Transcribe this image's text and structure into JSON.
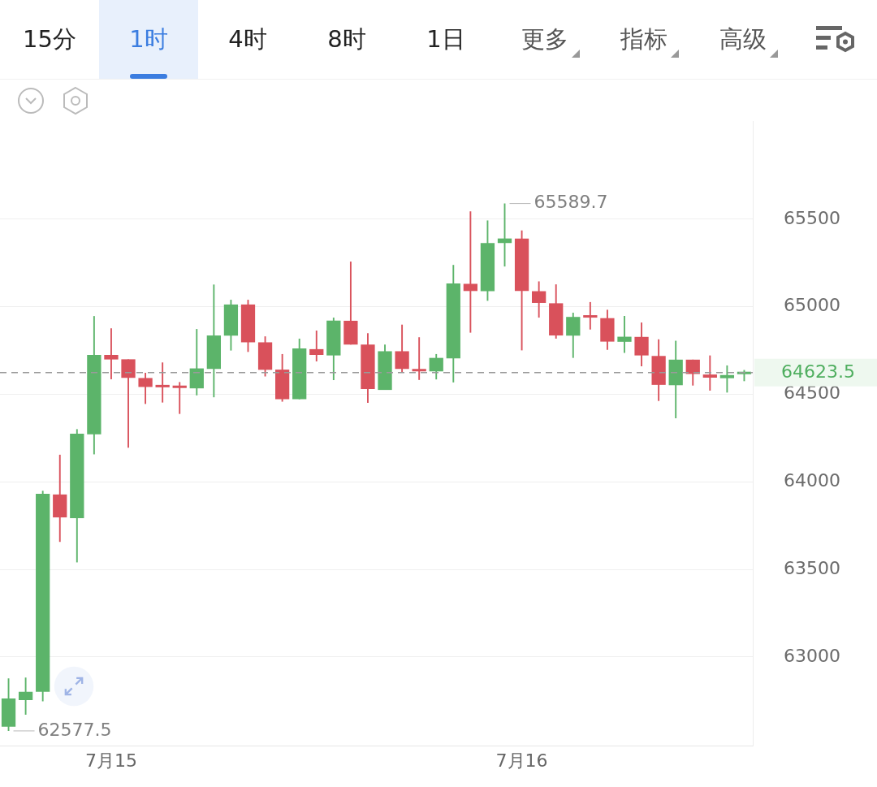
{
  "chart_data": {
    "type": "candlestick",
    "categories": [
      null,
      null,
      null,
      null,
      null,
      null,
      "7月15",
      null,
      null,
      null,
      null,
      null,
      null,
      null,
      null,
      null,
      null,
      null,
      null,
      null,
      null,
      null,
      null,
      null,
      null,
      null,
      null,
      null,
      null,
      null,
      "7月16",
      null,
      null,
      null,
      null,
      null,
      null,
      null,
      null,
      null,
      null,
      null,
      null,
      null
    ],
    "ohlc": [
      [
        62602,
        62877,
        62577.5,
        62763
      ],
      [
        62754,
        62882,
        62670,
        62801
      ],
      [
        62801,
        63949,
        62746,
        63932
      ],
      [
        63928,
        64155,
        63657,
        63797
      ],
      [
        63793,
        64301,
        63540,
        64275
      ],
      [
        64271,
        64947,
        64157,
        64725
      ],
      [
        64725,
        64877,
        64586,
        64699
      ],
      [
        64700,
        64700,
        64195,
        64594
      ],
      [
        64593,
        64623,
        64445,
        64542
      ],
      [
        64545,
        64682,
        64453,
        64540
      ],
      [
        64540,
        64570,
        64388,
        64536
      ],
      [
        64534,
        64873,
        64494,
        64648
      ],
      [
        64645,
        65127,
        64483,
        64836
      ],
      [
        64835,
        65040,
        64750,
        65013
      ],
      [
        65013,
        65040,
        64742,
        64797
      ],
      [
        64797,
        64831,
        64602,
        64640
      ],
      [
        64641,
        64730,
        64458,
        64472
      ],
      [
        64472,
        64818,
        64472,
        64762
      ],
      [
        64758,
        64864,
        64688,
        64725
      ],
      [
        64722,
        64938,
        64581,
        64921
      ],
      [
        64920,
        65258,
        64784,
        64784
      ],
      [
        64784,
        64849,
        64451,
        64530
      ],
      [
        64525,
        64784,
        64525,
        64746
      ],
      [
        64746,
        64898,
        64624,
        64645
      ],
      [
        64643,
        64826,
        64582,
        64631
      ],
      [
        64631,
        64730,
        64585,
        64708
      ],
      [
        64705,
        65239,
        64568,
        65133
      ],
      [
        65131,
        65545,
        64852,
        65090
      ],
      [
        65089,
        65493,
        65034,
        65364
      ],
      [
        65364,
        65589.7,
        65230,
        65390
      ],
      [
        65390,
        65436,
        64751,
        65090
      ],
      [
        65089,
        65145,
        64938,
        65022
      ],
      [
        65020,
        65128,
        64818,
        64836
      ],
      [
        64835,
        64966,
        64708,
        64942
      ],
      [
        64942,
        65027,
        64870,
        64938
      ],
      [
        64935,
        64983,
        64754,
        64801
      ],
      [
        64800,
        64948,
        64737,
        64829
      ],
      [
        64828,
        64910,
        64660,
        64722
      ],
      [
        64719,
        64814,
        64462,
        64554
      ],
      [
        64552,
        64806,
        64363,
        64698
      ],
      [
        64698,
        64698,
        64550,
        64616
      ],
      [
        64613,
        64722,
        64521,
        64595
      ],
      [
        64592,
        64665,
        64510,
        64610
      ],
      [
        64615,
        64639,
        64575,
        64623.5
      ]
    ],
    "colors": [
      "#5cb46a",
      "#5cb46a",
      "#5cb46a",
      "#d9515b",
      "#5cb46a",
      "#5cb46a",
      "#d9515b",
      "#d9515b",
      "#d9515b",
      "#d9515b",
      "#d9515b",
      "#5cb46a",
      "#5cb46a",
      "#5cb46a",
      "#d9515b",
      "#d9515b",
      "#d9515b",
      "#5cb46a",
      "#d9515b",
      "#5cb46a",
      "#d9515b",
      "#d9515b",
      "#5cb46a",
      "#d9515b",
      "#d9515b",
      "#5cb46a",
      "#5cb46a",
      "#d9515b",
      "#5cb46a",
      "#5cb46a",
      "#d9515b",
      "#d9515b",
      "#d9515b",
      "#5cb46a",
      "#d9515b",
      "#d9515b",
      "#5cb46a",
      "#d9515b",
      "#d9515b",
      "#5cb46a",
      "#d9515b",
      "#d9515b",
      "#5cb46a",
      "#5cb46a"
    ],
    "ylim": [
      62490,
      66060
    ],
    "yticks": [
      63000,
      63500,
      64000,
      64500,
      65000,
      65500
    ],
    "grid": "y",
    "legend": false,
    "ref_lines": [
      {
        "axis": "y",
        "value": 64623.5,
        "label": "64623.5",
        "color": "#9a9a9a",
        "line_style": "dashed"
      }
    ],
    "annotations": [
      "65589.7",
      "62577.5",
      "15分",
      "1时",
      "4时",
      "8时",
      "1日",
      "更多",
      "指标",
      "高级"
    ]
  }
}
